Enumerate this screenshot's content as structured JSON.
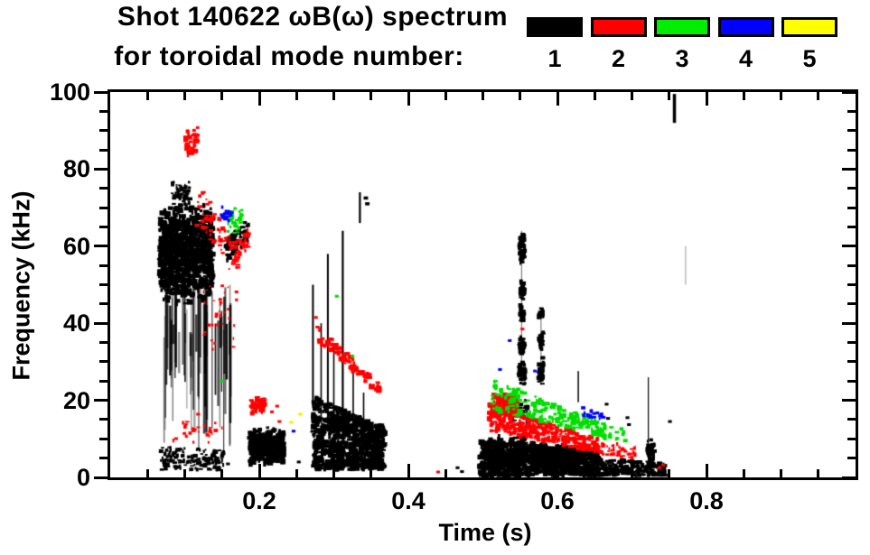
{
  "chart_data": {
    "type": "scatter",
    "title": "Shot 140622 ωB(ω) spectrum",
    "subtitle": "for toroidal mode number:",
    "xlabel": "Time (s)",
    "ylabel": "Frequency (kHz)",
    "xlim": [
      0,
      1.0
    ],
    "ylim": [
      0,
      100
    ],
    "x_major_ticks": [
      0.2,
      0.4,
      0.6,
      0.8
    ],
    "x_tick_labels": [
      "0.2",
      "0.4",
      "0.6",
      "0.8"
    ],
    "x_minor_step": 0.05,
    "y_major_ticks": [
      0,
      20,
      40,
      60,
      80,
      100
    ],
    "y_tick_labels": [
      "0",
      "20",
      "40",
      "60",
      "80",
      "100"
    ],
    "y_minor_step": 5,
    "grid": false,
    "legend_position": "top-right",
    "legend": {
      "labels": [
        "1",
        "2",
        "3",
        "4",
        "5"
      ],
      "colors": [
        "#000000",
        "#ff0000",
        "#00ee00",
        "#0000ff",
        "#ffff00"
      ]
    },
    "mode_colors": {
      "1": "#000000",
      "2": "#ff0000",
      "3": "#00dd00",
      "4": "#0000ff",
      "5": "#ffee00"
    },
    "clusters": [
      {
        "mode": 1,
        "shape": "blob",
        "t": [
          0.066,
          0.138
        ],
        "f": [
          44,
          72
        ],
        "n": 1100,
        "s": 3.5
      },
      {
        "mode": 1,
        "shape": "blob",
        "t": [
          0.082,
          0.108
        ],
        "f": [
          70,
          77
        ],
        "n": 70,
        "s": 2.5
      },
      {
        "mode": 1,
        "shape": "streaks",
        "t": [
          0.068,
          0.162
        ],
        "ftop": [
          36,
          52
        ],
        "fbot": [
          6,
          36
        ],
        "n": 60,
        "w": 1.8
      },
      {
        "mode": 1,
        "shape": "band",
        "t": [
          0.155,
          0.186
        ],
        "f0": [
          56,
          62
        ],
        "f1": [
          61,
          67
        ],
        "n": 90,
        "s": 3
      },
      {
        "mode": 1,
        "shape": "band",
        "t": [
          0.068,
          0.152
        ],
        "f0": [
          2,
          8
        ],
        "f1": [
          2,
          7
        ],
        "n": 170,
        "s": 2.6
      },
      {
        "mode": 1,
        "shape": "points",
        "s": 3,
        "pts": [
          [
            0.158,
            3.5
          ],
          [
            0.253,
            4
          ],
          [
            0.466,
            2.5
          ],
          [
            0.472,
            1.5
          ]
        ]
      },
      {
        "mode": 1,
        "shape": "blob",
        "t": [
          0.187,
          0.233
        ],
        "f": [
          3,
          13
        ],
        "n": 420,
        "s": 3.6
      },
      {
        "mode": 1,
        "shape": "band",
        "t": [
          0.272,
          0.368
        ],
        "f0": [
          2,
          21
        ],
        "f1": [
          2,
          13
        ],
        "n": 850,
        "s": 3.6
      },
      {
        "mode": 1,
        "shape": "spike",
        "t": 0.272,
        "f": [
          18,
          50
        ],
        "w": 2
      },
      {
        "mode": 1,
        "shape": "spike",
        "t": 0.283,
        "f": [
          14,
          40
        ],
        "w": 1.6
      },
      {
        "mode": 1,
        "shape": "spike",
        "t": 0.292,
        "f": [
          12,
          58
        ],
        "w": 2
      },
      {
        "mode": 1,
        "shape": "spike",
        "t": 0.3,
        "f": [
          12,
          34
        ],
        "w": 1.6
      },
      {
        "mode": 1,
        "shape": "spike",
        "t": 0.312,
        "f": [
          10,
          64
        ],
        "w": 2.2
      },
      {
        "mode": 1,
        "shape": "spike",
        "t": 0.326,
        "f": [
          8,
          28
        ],
        "w": 1.6
      },
      {
        "mode": 1,
        "shape": "spike",
        "t": 0.34,
        "f": [
          6,
          22
        ],
        "w": 1.6
      },
      {
        "mode": 1,
        "shape": "spike",
        "t": 0.335,
        "f": [
          66,
          74
        ],
        "w": 2.2
      },
      {
        "mode": 1,
        "shape": "points",
        "s": 3.5,
        "pts": [
          [
            0.343,
            72.5
          ],
          [
            0.345,
            71
          ]
        ]
      },
      {
        "mode": 1,
        "shape": "band",
        "t": [
          0.496,
          0.655
        ],
        "f0": [
          0.5,
          9.5
        ],
        "f1": [
          0.5,
          7
        ],
        "n": 900,
        "s": 3.6
      },
      {
        "mode": 1,
        "shape": "blob",
        "t": [
          0.505,
          0.527
        ],
        "f": [
          1,
          11
        ],
        "n": 140,
        "s": 3.5
      },
      {
        "mode": 1,
        "shape": "blob",
        "t": [
          0.537,
          0.558
        ],
        "f": [
          1,
          11.5
        ],
        "n": 140,
        "s": 3.5
      },
      {
        "mode": 1,
        "shape": "blob",
        "t": [
          0.566,
          0.588
        ],
        "f": [
          1,
          10
        ],
        "n": 140,
        "s": 3.5
      },
      {
        "mode": 1,
        "shape": "blob",
        "t": [
          0.597,
          0.617
        ],
        "f": [
          1,
          9
        ],
        "n": 120,
        "s": 3.5
      },
      {
        "mode": 1,
        "shape": "band",
        "t": [
          0.655,
          0.745
        ],
        "f0": [
          0.5,
          5
        ],
        "f1": [
          0.5,
          3.5
        ],
        "n": 200,
        "s": 3
      },
      {
        "mode": 1,
        "shape": "blob",
        "t": [
          0.72,
          0.73
        ],
        "f": [
          1,
          11
        ],
        "n": 70,
        "s": 3
      },
      {
        "mode": 1,
        "shape": "spike",
        "t": 0.552,
        "f": [
          24,
          64
        ],
        "w": 1.2,
        "alpha": 0.5
      },
      {
        "mode": 1,
        "shape": "blob",
        "t": [
          0.549,
          0.556
        ],
        "f": [
          55,
          64.5
        ],
        "n": 60,
        "s": 3
      },
      {
        "mode": 1,
        "shape": "blob",
        "t": [
          0.549,
          0.556
        ],
        "f": [
          46,
          51
        ],
        "n": 40,
        "s": 3
      },
      {
        "mode": 1,
        "shape": "blob",
        "t": [
          0.55,
          0.555
        ],
        "f": [
          40,
          45
        ],
        "n": 35,
        "s": 3
      },
      {
        "mode": 1,
        "shape": "blob",
        "t": [
          0.549,
          0.556
        ],
        "f": [
          32,
          37
        ],
        "n": 40,
        "s": 3
      },
      {
        "mode": 1,
        "shape": "blob",
        "t": [
          0.548,
          0.557
        ],
        "f": [
          24,
          30
        ],
        "n": 50,
        "s": 3
      },
      {
        "mode": 1,
        "shape": "spike",
        "t": 0.578,
        "f": [
          24,
          44
        ],
        "w": 1.2,
        "alpha": 0.5
      },
      {
        "mode": 1,
        "shape": "blob",
        "t": [
          0.575,
          0.581
        ],
        "f": [
          41,
          44
        ],
        "n": 25,
        "s": 3
      },
      {
        "mode": 1,
        "shape": "blob",
        "t": [
          0.575,
          0.581
        ],
        "f": [
          33,
          38
        ],
        "n": 35,
        "s": 3
      },
      {
        "mode": 1,
        "shape": "blob",
        "t": [
          0.574,
          0.582
        ],
        "f": [
          24,
          32
        ],
        "n": 45,
        "s": 3
      },
      {
        "mode": 1,
        "shape": "blob",
        "t": [
          0.538,
          0.562
        ],
        "f": [
          13,
          22
        ],
        "n": 40,
        "s": 2.8
      },
      {
        "mode": 1,
        "shape": "spike",
        "t": 0.628,
        "f": [
          19.5,
          27.6
        ],
        "w": 1.5
      },
      {
        "mode": 1,
        "shape": "points",
        "s": 3,
        "pts": [
          [
            0.666,
            19
          ],
          [
            0.668,
            15.3
          ],
          [
            0.694,
            15.5
          ],
          [
            0.696,
            13.7
          ],
          [
            0.751,
            14.5
          ]
        ]
      },
      {
        "mode": 1,
        "shape": "spike",
        "t": 0.722,
        "f": [
          2,
          26
        ],
        "w": 1.2
      },
      {
        "mode": 1,
        "shape": "spike",
        "t": 0.757,
        "f": [
          92,
          99.5
        ],
        "w": 3.5
      },
      {
        "mode": 1,
        "shape": "spike",
        "t": 0.772,
        "f": [
          50,
          60
        ],
        "w": 1.2,
        "alpha": 0.35
      },
      {
        "mode": 2,
        "shape": "blob",
        "t": [
          0.1,
          0.118
        ],
        "f": [
          83,
          91
        ],
        "n": 45,
        "s": 3
      },
      {
        "mode": 2,
        "shape": "band",
        "t": [
          0.116,
          0.172
        ],
        "f0": [
          64,
          78
        ],
        "f1": [
          54,
          60
        ],
        "n": 70,
        "s": 2.8
      },
      {
        "mode": 2,
        "shape": "band",
        "t": [
          0.17,
          0.187
        ],
        "f0": [
          56,
          61
        ],
        "f1": [
          60,
          65
        ],
        "n": 25,
        "s": 2.8
      },
      {
        "mode": 2,
        "shape": "blob",
        "t": [
          0.125,
          0.172
        ],
        "f": [
          28,
          55
        ],
        "n": 35,
        "s": 2.2
      },
      {
        "mode": 2,
        "shape": "blob",
        "t": [
          0.084,
          0.15
        ],
        "f": [
          8,
          16
        ],
        "n": 28,
        "s": 2.6
      },
      {
        "mode": 2,
        "shape": "blob",
        "t": [
          0.189,
          0.209
        ],
        "f": [
          16.5,
          21
        ],
        "n": 55,
        "s": 3.2
      },
      {
        "mode": 2,
        "shape": "points",
        "s": 3,
        "pts": [
          [
            0.217,
            17
          ],
          [
            0.227,
            14.5
          ],
          [
            0.224,
            18.5
          ],
          [
            0.118,
            16.4
          ],
          [
            0.276,
            41.5
          ],
          [
            0.278,
            39
          ],
          [
            0.44,
            1.4
          ],
          [
            0.553,
            38.5
          ],
          [
            0.737,
            2.5
          ],
          [
            0.742,
            3.2
          ]
        ]
      },
      {
        "mode": 2,
        "shape": "band",
        "t": [
          0.28,
          0.363
        ],
        "f0": [
          35,
          39
        ],
        "f1": [
          21.5,
          24
        ],
        "n": 80,
        "s": 3.4
      },
      {
        "mode": 2,
        "shape": "band",
        "t": [
          0.508,
          0.655
        ],
        "f0": [
          12,
          19
        ],
        "f1": [
          6.5,
          10
        ],
        "n": 320,
        "s": 3.2
      },
      {
        "mode": 2,
        "shape": "blob",
        "t": [
          0.513,
          0.546
        ],
        "f": [
          15,
          22
        ],
        "n": 140,
        "s": 3.4
      },
      {
        "mode": 2,
        "shape": "band",
        "t": [
          0.655,
          0.705
        ],
        "f0": [
          6,
          9.5
        ],
        "f1": [
          5,
          8
        ],
        "n": 45,
        "s": 2.6
      },
      {
        "mode": 3,
        "shape": "blob",
        "t": [
          0.157,
          0.178
        ],
        "f": [
          63,
          70
        ],
        "n": 32,
        "s": 3
      },
      {
        "mode": 3,
        "shape": "points",
        "s": 3,
        "pts": [
          [
            0.15,
            25
          ],
          [
            0.304,
            47
          ],
          [
            0.325,
            31.4
          ]
        ]
      },
      {
        "mode": 3,
        "shape": "band",
        "t": [
          0.512,
          0.665
        ],
        "f0": [
          17.5,
          25.5
        ],
        "f1": [
          10.5,
          14
        ],
        "n": 190,
        "s": 3.2
      },
      {
        "mode": 3,
        "shape": "points",
        "s": 7,
        "pts": [
          [
            0.651,
            11.5
          ]
        ]
      },
      {
        "mode": 3,
        "shape": "band",
        "t": [
          0.662,
          0.692
        ],
        "f0": [
          10,
          13.5
        ],
        "f1": [
          9.5,
          12.5
        ],
        "n": 14,
        "s": 2.6
      },
      {
        "mode": 4,
        "shape": "blob",
        "t": [
          0.149,
          0.164
        ],
        "f": [
          66,
          71
        ],
        "n": 20,
        "s": 3
      },
      {
        "mode": 4,
        "shape": "points",
        "s": 3,
        "pts": [
          [
            0.246,
            12
          ],
          [
            0.536,
            35.5
          ],
          [
            0.523,
            28
          ],
          [
            0.57,
            27.6
          ]
        ]
      },
      {
        "mode": 4,
        "shape": "band",
        "t": [
          0.633,
          0.662
        ],
        "f0": [
          16,
          18.5
        ],
        "f1": [
          14.6,
          16.2
        ],
        "n": 16,
        "s": 2.8
      },
      {
        "mode": 5,
        "shape": "points",
        "s": 3.2,
        "pts": [
          [
            0.243,
            14.3
          ],
          [
            0.255,
            16.4
          ]
        ]
      }
    ]
  }
}
